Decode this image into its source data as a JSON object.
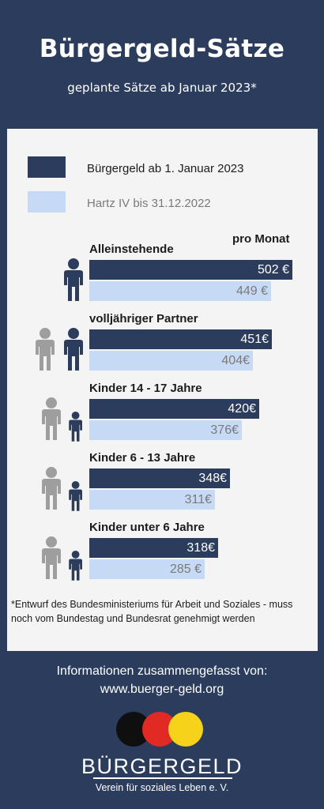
{
  "header": {
    "title": "Bürgergeld-Sätze",
    "subtitle": "geplante Sätze ab Januar 2023*"
  },
  "legend": {
    "new_label": "Bürgergeld ab 1. Januar 2023",
    "old_label": "Hartz IV bis 31.12.2022"
  },
  "unit_label": "pro Monat",
  "colors": {
    "background": "#2b3c5c",
    "panel": "#f4f4f4",
    "buergergeld_bar": "#2b3c5c",
    "hartz_bar": "#c7daf5",
    "person_dark": "#2b3c5c",
    "person_gray": "#9e9e9e",
    "logo_circles": [
      "#0f0f0f",
      "#e02a23",
      "#f7d21a"
    ]
  },
  "chart_data": {
    "type": "bar",
    "orientation": "horizontal",
    "categories": [
      "Alleinstehende",
      "volljähriger Partner",
      "Kinder 14 - 17 Jahre",
      "Kinder 6 - 13 Jahre",
      "Kinder unter 6 Jahre"
    ],
    "series": [
      {
        "name": "Bürgergeld ab 1. Januar 2023",
        "values": [
          502,
          451,
          420,
          348,
          318
        ],
        "labels": [
          "502 €",
          "451€",
          "420€",
          "348€",
          "318€"
        ]
      },
      {
        "name": "Hartz IV bis 31.12.2022",
        "values": [
          449,
          404,
          376,
          311,
          285
        ],
        "labels": [
          "449 €",
          "404€",
          "376€",
          "311€",
          "285 €"
        ]
      }
    ],
    "icons": [
      "adult-icon",
      "adult-pair-icon",
      "adult-child-icon",
      "adult-child-icon",
      "adult-child-icon"
    ]
  },
  "footnote": "*Entwurf des Bundesministeriums für Arbeit und Soziales - muss noch vom Bundestag und Bundesrat genehmigt werden",
  "footer": {
    "info_line": "Informationen zusammengefasst von:",
    "url": "www.buerger-geld.org",
    "brand": "BÜRGERGELD",
    "brand_sub": "Verein für soziales Leben e. V."
  }
}
